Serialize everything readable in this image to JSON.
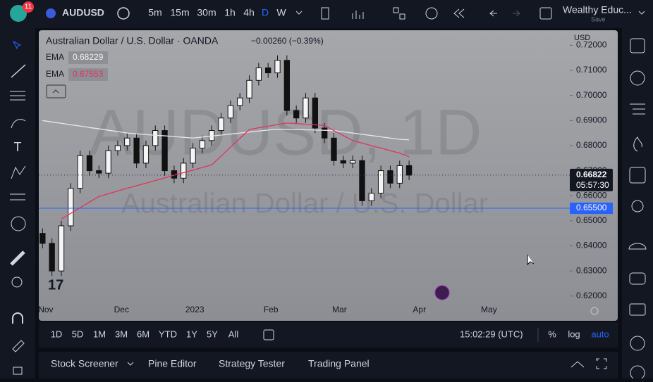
{
  "top_bar": {
    "badge": "11",
    "symbol": "AUDUSD",
    "intervals": [
      "5m",
      "15m",
      "30m",
      "1h",
      "4h",
      "D",
      "W"
    ],
    "active_interval": "D",
    "layout_name": "Wealthy Educ...",
    "save": "Save"
  },
  "chart_data": {
    "type": "candlestick",
    "title": "Australian Dollar / U.S. Dollar · OANDA",
    "change": "−0.00260 (−0.39%)",
    "watermark": "AUDUSD, 1D",
    "watermark_subtitle": "Australian Dollar / U.S. Dollar",
    "currency": "USD",
    "candles": {
      "open": [
        0.645,
        0.641,
        0.63,
        0.648,
        0.663,
        0.676,
        0.67,
        0.669,
        0.678,
        0.68,
        0.683,
        0.673,
        0.68,
        0.686,
        0.67,
        0.667,
        0.673,
        0.679,
        0.682,
        0.686,
        0.691,
        0.696,
        0.699,
        0.706,
        0.711,
        0.709,
        0.714,
        0.694,
        0.691,
        0.699,
        0.687,
        0.683,
        0.674,
        0.673,
        0.674,
        0.658,
        0.661,
        0.67,
        0.665,
        0.672
      ],
      "high": [
        0.647,
        0.643,
        0.65,
        0.665,
        0.678,
        0.678,
        0.672,
        0.68,
        0.682,
        0.685,
        0.685,
        0.682,
        0.688,
        0.688,
        0.672,
        0.675,
        0.681,
        0.684,
        0.688,
        0.693,
        0.698,
        0.701,
        0.708,
        0.713,
        0.713,
        0.716,
        0.716,
        0.696,
        0.701,
        0.701,
        0.689,
        0.685,
        0.676,
        0.676,
        0.676,
        0.663,
        0.672,
        0.672,
        0.674,
        0.674
      ],
      "low": [
        0.639,
        0.628,
        0.628,
        0.646,
        0.661,
        0.668,
        0.667,
        0.667,
        0.676,
        0.678,
        0.671,
        0.671,
        0.678,
        0.668,
        0.665,
        0.665,
        0.671,
        0.677,
        0.68,
        0.684,
        0.689,
        0.694,
        0.697,
        0.704,
        0.707,
        0.707,
        0.692,
        0.689,
        0.689,
        0.685,
        0.681,
        0.672,
        0.671,
        0.671,
        0.656,
        0.656,
        0.659,
        0.663,
        0.663,
        0.66622
      ],
      "close": [
        0.641,
        0.63,
        0.648,
        0.663,
        0.676,
        0.67,
        0.669,
        0.678,
        0.68,
        0.683,
        0.673,
        0.68,
        0.686,
        0.67,
        0.667,
        0.673,
        0.679,
        0.682,
        0.686,
        0.691,
        0.696,
        0.699,
        0.706,
        0.711,
        0.709,
        0.714,
        0.694,
        0.691,
        0.699,
        0.687,
        0.683,
        0.674,
        0.673,
        0.674,
        0.658,
        0.661,
        0.67,
        0.665,
        0.672,
        0.66822
      ]
    },
    "series": [
      {
        "name": "EMA",
        "color": "#e8e8ea",
        "values": [
          0.69,
          0.6894,
          0.6889,
          0.6883,
          0.6878,
          0.6872,
          0.6867,
          0.6861,
          0.6856,
          0.685,
          0.6847,
          0.6844,
          0.6841,
          0.6839,
          0.6836,
          0.6833,
          0.683,
          0.6834,
          0.6838,
          0.6842,
          0.6846,
          0.685,
          0.6854,
          0.6858,
          0.6862,
          0.6865,
          0.6864,
          0.6864,
          0.6863,
          0.6862,
          0.6861,
          0.686,
          0.6855,
          0.685,
          0.6845,
          0.684,
          0.6835,
          0.683,
          0.6825,
          0.68229
        ]
      },
      {
        "name": "EMA",
        "color": "#e0345e",
        "values": [
          null,
          null,
          0.6507,
          0.653,
          0.6552,
          0.6575,
          0.6597,
          0.6608,
          0.6619,
          0.663,
          0.664,
          0.665,
          0.6661,
          0.6671,
          0.6682,
          0.6692,
          0.6702,
          0.6713,
          0.6723,
          0.6758,
          0.6794,
          0.6829,
          0.6864,
          0.6871,
          0.6877,
          0.6884,
          0.689,
          0.6888,
          0.6885,
          0.6883,
          0.688,
          0.686,
          0.684,
          0.682,
          0.681,
          0.68,
          0.679,
          0.678,
          0.677,
          0.67553
        ]
      }
    ],
    "countdown": "05:57:30",
    "price_line": {
      "value": 0.655,
      "label": "0.65500",
      "color": "#2962ff"
    },
    "ylim": [
      0.6104,
      0.726
    ],
    "yticks": [
      {
        "value": 0.62,
        "label": "0.62000"
      },
      {
        "value": 0.63,
        "label": "0.63000"
      },
      {
        "value": 0.64,
        "label": "0.64000"
      },
      {
        "value": 0.65,
        "label": "0.65000"
      },
      {
        "value": 0.66,
        "label": "0.66000"
      },
      {
        "value": 0.67,
        "label": "0.67000"
      },
      {
        "value": 0.68,
        "label": "0.68000"
      },
      {
        "value": 0.69,
        "label": "0.69000"
      },
      {
        "value": 0.7,
        "label": "0.70000"
      },
      {
        "value": 0.71,
        "label": "0.71000"
      },
      {
        "value": 0.72,
        "label": "0.72000"
      }
    ],
    "xlim": [
      -0.4,
      56.1
    ],
    "xticks": [
      {
        "value": 0.34,
        "label": "Nov"
      },
      {
        "value": 8.4,
        "label": "Dec"
      },
      {
        "value": 16.2,
        "label": "2023"
      },
      {
        "value": 24.3,
        "label": "Feb"
      },
      {
        "value": 31.6,
        "label": "Mar"
      },
      {
        "value": 40.1,
        "label": "Apr"
      },
      {
        "value": 47.5,
        "label": "May"
      }
    ]
  },
  "range_bar": {
    "ranges": [
      "1D",
      "5D",
      "1M",
      "3M",
      "6M",
      "YTD",
      "1Y",
      "5Y",
      "All"
    ],
    "clock": "15:02:29 (UTC)",
    "options": [
      "%",
      "log",
      "auto"
    ]
  },
  "bottom_panel": {
    "tabs": [
      "Stock Screener",
      "Pine Editor",
      "Strategy Tester",
      "Trading Panel"
    ]
  }
}
